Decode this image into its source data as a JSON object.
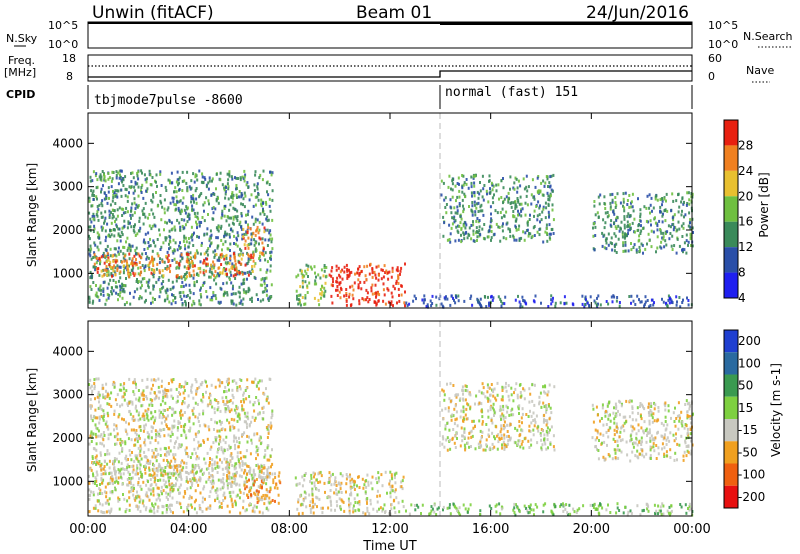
{
  "header": {
    "station": "Unwin (fitACF)",
    "beam": "Beam 01",
    "date": "24/Jun/2016"
  },
  "top_panels": {
    "nsky_label": "N.Sky",
    "nsky_ticks": [
      "10^5",
      "10^0"
    ],
    "nsearch_label": "N.Search",
    "freq_label": "Freq.",
    "freq_unit": "[MHz]",
    "freq_ticks": [
      "18",
      "8"
    ],
    "nave_label": "Nave",
    "nave_ticks": [
      "60",
      "0"
    ],
    "cpid_label": "CPID",
    "cpid_segments": [
      {
        "label": "tbjmode7pulse -8600",
        "start": "00:00",
        "end": "14:00"
      },
      {
        "label": "normal (fast) 151",
        "start": "14:00",
        "end": "24:00"
      }
    ]
  },
  "x_axis": {
    "label": "Time UT",
    "ticks": [
      "00:00",
      "04:00",
      "08:00",
      "12:00",
      "16:00",
      "20:00",
      "00:00"
    ],
    "range_hours": [
      0,
      24
    ]
  },
  "chart_data": [
    {
      "type": "heatmap",
      "title": "Power",
      "ylabel": "Slant Range [km]",
      "yticks": [
        1000,
        2000,
        3000,
        4000
      ],
      "ylim": [
        200,
        4700
      ],
      "colorbar_label": "Power [dB]",
      "colorbar_ticks": [
        4,
        8,
        12,
        16,
        20,
        24,
        28
      ],
      "colors": [
        "#1f1ff0",
        "#2a4fa8",
        "#3a8a5a",
        "#6fc040",
        "#e8c030",
        "#f08020",
        "#e82010"
      ],
      "regions": [
        {
          "t0": 0.0,
          "t1": 7.3,
          "r0": 300,
          "r1": 3400,
          "level": 2
        },
        {
          "t0": 0.2,
          "t1": 6.6,
          "r0": 950,
          "r1": 1500,
          "level": 5
        },
        {
          "t0": 6.1,
          "t1": 7.0,
          "r0": 1400,
          "r1": 2100,
          "level": 5
        },
        {
          "t0": 8.2,
          "t1": 9.5,
          "r0": 300,
          "r1": 1250,
          "level": 3
        },
        {
          "t0": 9.5,
          "t1": 12.6,
          "r0": 280,
          "r1": 1250,
          "level": 6
        },
        {
          "t0": 12.6,
          "t1": 24.0,
          "r0": 250,
          "r1": 520,
          "level": 1
        },
        {
          "t0": 14.0,
          "t1": 18.5,
          "r0": 1750,
          "r1": 3300,
          "level": 2
        },
        {
          "t0": 20.0,
          "t1": 24.0,
          "r0": 1500,
          "r1": 2900,
          "level": 2
        }
      ]
    },
    {
      "type": "heatmap",
      "title": "Velocity",
      "ylabel": "Slant Range [km]",
      "yticks": [
        1000,
        2000,
        3000,
        4000
      ],
      "ylim": [
        200,
        4700
      ],
      "colorbar_label": "Velocity [m s-1]",
      "colorbar_ticks": [
        200,
        100,
        50,
        15,
        -15,
        -50,
        -100,
        -200
      ],
      "colors": [
        "#1f3fd0",
        "#2a6aa0",
        "#3a9a50",
        "#7ed040",
        "#c8c8c0",
        "#f0a020",
        "#f06010",
        "#e81010"
      ],
      "regions": [
        {
          "t0": 0.0,
          "t1": 7.3,
          "r0": 300,
          "r1": 3400,
          "level": 4
        },
        {
          "t0": 0.2,
          "t1": 6.6,
          "r0": 950,
          "r1": 1500,
          "level": 4
        },
        {
          "t0": 6.2,
          "t1": 7.6,
          "r0": 500,
          "r1": 1400,
          "level": 5
        },
        {
          "t0": 8.2,
          "t1": 12.6,
          "r0": 280,
          "r1": 1250,
          "level": 4
        },
        {
          "t0": 12.6,
          "t1": 24.0,
          "r0": 250,
          "r1": 520,
          "level": 3
        },
        {
          "t0": 14.0,
          "t1": 18.5,
          "r0": 1750,
          "r1": 3300,
          "level": 4
        },
        {
          "t0": 20.0,
          "t1": 24.0,
          "r0": 1500,
          "r1": 2900,
          "level": 4
        }
      ]
    }
  ]
}
